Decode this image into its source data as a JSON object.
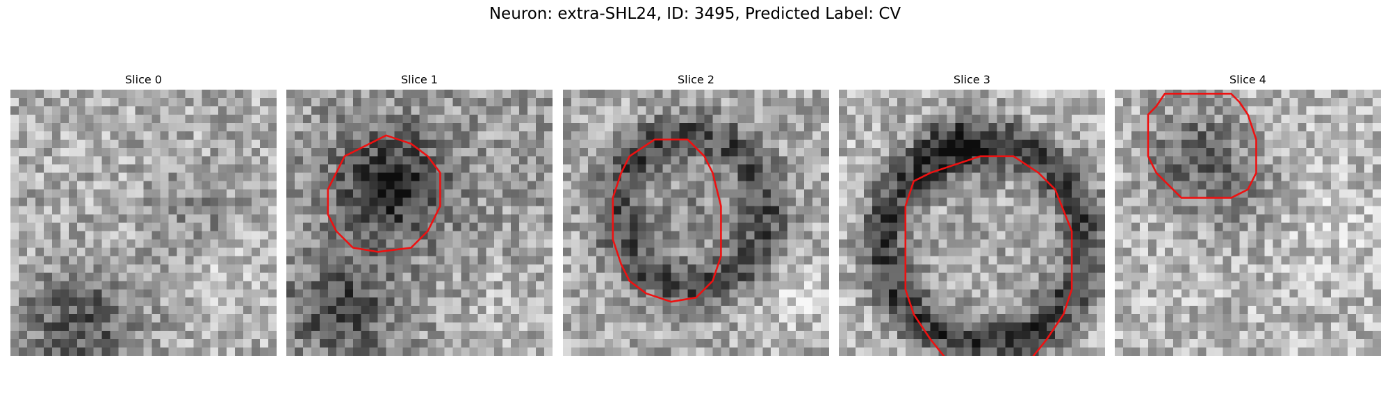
{
  "figure": {
    "title": "Neuron: extra-SHL24, ID: 3495, Predicted Label: CV"
  },
  "panels": [
    {
      "title": "Slice 0",
      "seed": 11,
      "has_contour": false
    },
    {
      "title": "Slice 1",
      "seed": 23,
      "has_contour": true
    },
    {
      "title": "Slice 2",
      "seed": 37,
      "has_contour": true
    },
    {
      "title": "Slice 3",
      "seed": 51,
      "has_contour": true
    },
    {
      "title": "Slice 4",
      "seed": 67,
      "has_contour": true
    }
  ],
  "colors": {
    "contour": "#ee1111",
    "image_colormap": "grayscale"
  }
}
